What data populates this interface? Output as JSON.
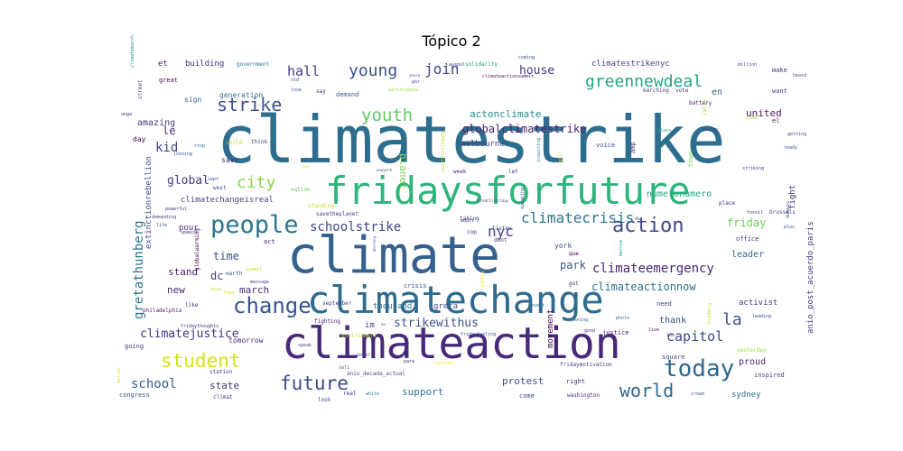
{
  "title": "Tópico 2",
  "words": [
    {
      "text": "climatestrike",
      "color": "#2d6e8e",
      "weight": 100
    },
    {
      "text": "climate",
      "color": "#34618d",
      "weight": 75
    },
    {
      "text": "climateaction",
      "color": "#482878",
      "weight": 68
    },
    {
      "text": "climatechange",
      "color": "#2f6b8e",
      "weight": 58
    },
    {
      "text": "fridaysforfuture",
      "color": "#2fb47c",
      "weight": 55
    },
    {
      "text": "people",
      "color": "#2b758e",
      "weight": 38
    },
    {
      "text": "today",
      "color": "#30688e",
      "weight": 36
    },
    {
      "text": "change",
      "color": "#3a548c",
      "weight": 33
    },
    {
      "text": "action",
      "color": "#3f4889",
      "weight": 30
    },
    {
      "text": "future",
      "color": "#3e4a89",
      "weight": 30
    },
    {
      "text": "student",
      "color": "#d8e219",
      "weight": 28
    },
    {
      "text": "world",
      "color": "#31678e",
      "weight": 27
    },
    {
      "text": "strike",
      "color": "#3c508b",
      "weight": 27
    },
    {
      "text": "youth",
      "color": "#5ec962",
      "weight": 26
    },
    {
      "text": "city",
      "color": "#8bd646",
      "weight": 25
    },
    {
      "text": "greennewdeal",
      "color": "#22a785",
      "weight": 24
    },
    {
      "text": "la",
      "color": "#3b518b",
      "weight": 24
    },
    {
      "text": "young",
      "color": "#3b528b",
      "weight": 24
    },
    {
      "text": "nyc",
      "color": "#433e85",
      "weight": 22
    },
    {
      "text": "join",
      "color": "#424186",
      "weight": 21
    },
    {
      "text": "climatecrisis",
      "color": "#2a778e",
      "weight": 21
    },
    {
      "text": "hall",
      "color": "#453882",
      "weight": 20
    },
    {
      "text": "capitol",
      "color": "#3e4989",
      "weight": 20
    },
    {
      "text": "school",
      "color": "#375a8c",
      "weight": 19
    },
    {
      "text": "climateemergency",
      "color": "#482677",
      "weight": 19
    },
    {
      "text": "schoolstrike",
      "color": "#404588",
      "weight": 18
    },
    {
      "text": "gretathunberg",
      "color": "#2c728e",
      "weight": 18
    },
    {
      "text": "kid",
      "color": "#414287",
      "weight": 18
    },
    {
      "text": "strikewithus",
      "color": "#3a538b",
      "weight": 17
    },
    {
      "text": "climatejustice",
      "color": "#46337f",
      "weight": 17
    },
    {
      "text": "global",
      "color": "#443a83",
      "weight": 17
    },
    {
      "text": "house",
      "color": "#453781",
      "weight": 17
    },
    {
      "text": "globalclimatestrike",
      "color": "#481f70",
      "weight": 16
    },
    {
      "text": "climateactionnow",
      "color": "#2d708e",
      "weight": 16
    },
    {
      "text": "friday",
      "color": "#6ccd5a",
      "weight": 16
    },
    {
      "text": "park",
      "color": "#38588c",
      "weight": 16
    },
    {
      "text": "time",
      "color": "#3c4f8a",
      "weight": 16
    },
    {
      "text": "dc",
      "color": "#424086",
      "weight": 16
    },
    {
      "text": "le",
      "color": "#46307e",
      "weight": 16
    },
    {
      "text": "actonclimate",
      "color": "#21918c",
      "weight": 15
    },
    {
      "text": "march",
      "color": "#472c7a",
      "weight": 15
    },
    {
      "text": "protest",
      "color": "#3e4c8a",
      "weight": 15
    },
    {
      "text": "support",
      "color": "#2a788e",
      "weight": 14
    },
    {
      "text": "state",
      "color": "#46327e",
      "weight": 14
    },
    {
      "text": "new",
      "color": "#472d7b",
      "weight": 14
    },
    {
      "text": "stand",
      "color": "#481b6d",
      "weight": 14
    },
    {
      "text": "planet",
      "color": "#7ad151",
      "weight": 14
    },
    {
      "text": "united",
      "color": "#481668",
      "weight": 14
    },
    {
      "text": "amazing",
      "color": "#453781",
      "weight": 13
    },
    {
      "text": "thank",
      "color": "#3d4d8a",
      "weight": 13
    },
    {
      "text": "proud",
      "color": "#482475",
      "weight": 13
    },
    {
      "text": "numeronumero",
      "color": "#22a884",
      "weight": 13
    },
    {
      "text": "leader",
      "color": "#31688e",
      "weight": 12
    },
    {
      "text": "en",
      "color": "#355f8d",
      "weight": 12
    },
    {
      "text": "climatechangeisreal",
      "color": "#404688",
      "weight": 11
    },
    {
      "text": "im",
      "color": "#443983",
      "weight": 11
    },
    {
      "text": "greta",
      "color": "#3b528b",
      "weight": 10
    },
    {
      "text": "movement",
      "color": "#440154",
      "weight": 10
    },
    {
      "text": "activist",
      "color": "#46317e",
      "weight": 10
    },
    {
      "text": "sydney",
      "color": "#2e6d8e",
      "weight": 10
    },
    {
      "text": "extinctionrebellion",
      "color": "#3f4889",
      "weight": 10
    },
    {
      "text": "anio_post_acuerdo_paris",
      "color": "#46337f",
      "weight": 10
    },
    {
      "text": "building",
      "color": "#472a7a",
      "weight": 10
    },
    {
      "text": "et",
      "color": "#481769",
      "weight": 10
    },
    {
      "text": "melbourne",
      "color": "#404588",
      "weight": 10
    },
    {
      "text": "pour",
      "color": "#472e7c",
      "weight": 10
    },
    {
      "text": "climatestrikenyc",
      "color": "#414287",
      "weight": 10
    },
    {
      "text": "fight",
      "color": "#472d7b",
      "weight": 10
    },
    {
      "text": "thousand",
      "color": "#2d708e",
      "weight": 10
    },
    {
      "text": "york",
      "color": "#3b518b",
      "weight": 9
    },
    {
      "text": "tomorrow",
      "color": "#482475",
      "weight": 9
    },
    {
      "text": "save",
      "color": "#472f7d",
      "weight": 9
    },
    {
      "text": "generation",
      "color": "#2c718e",
      "weight": 9
    },
    {
      "text": "sign",
      "color": "#31688e",
      "weight": 9
    },
    {
      "text": "day",
      "color": "#440154",
      "weight": 9
    },
    {
      "text": "congress",
      "color": "#3b528b",
      "weight": 8
    },
    {
      "text": "come",
      "color": "#414487",
      "weight": 8
    },
    {
      "text": "right",
      "color": "#46327e",
      "weight": 8
    },
    {
      "text": "square",
      "color": "#414487",
      "weight": 8
    },
    {
      "text": "inspired",
      "color": "#433e85",
      "weight": 8
    },
    {
      "text": "voice",
      "color": "#3e4a89",
      "weight": 8
    },
    {
      "text": "town",
      "color": "#7ad151",
      "weight": 8
    },
    {
      "text": "amp",
      "color": "#46337f",
      "weight": 8
    },
    {
      "text": "el",
      "color": "#481467",
      "weight": 8
    },
    {
      "text": "going",
      "color": "#453781",
      "weight": 8
    },
    {
      "text": "justice",
      "color": "#481c6e",
      "weight": 8
    },
    {
      "text": "office",
      "color": "#46317e",
      "weight": 8
    },
    {
      "text": "need",
      "color": "#3f4788",
      "weight": 8
    },
    {
      "text": "make",
      "color": "#472c7a",
      "weight": 8
    },
    {
      "text": "want",
      "color": "#423f85",
      "weight": 8
    },
    {
      "text": "great",
      "color": "#440154",
      "weight": 8
    },
    {
      "text": "act",
      "color": "#482576",
      "weight": 8
    },
    {
      "text": "crisis",
      "color": "#3e4989",
      "weight": 8
    },
    {
      "text": "demand",
      "color": "#38598c",
      "weight": 8
    },
    {
      "text": "say",
      "color": "#481b6d",
      "weight": 7
    },
    {
      "text": "child",
      "color": "#b5de2b",
      "weight": 7
    },
    {
      "text": "que",
      "color": "#440154",
      "weight": 7
    },
    {
      "text": "earth",
      "color": "#3b528b",
      "weight": 7
    },
    {
      "text": "savetheplanet",
      "color": "#453781",
      "weight": 7
    },
    {
      "text": "week",
      "color": "#481d6f",
      "weight": 7
    },
    {
      "text": "let",
      "color": "#46307e",
      "weight": 7
    },
    {
      "text": "taking",
      "color": "#3e4c8a",
      "weight": 7
    },
    {
      "text": "listen",
      "color": "#3b518b",
      "weight": 7
    },
    {
      "text": "dont",
      "color": "#472d7b",
      "weight": 7
    },
    {
      "text": "philadelphia",
      "color": "#481a6c",
      "weight": 7
    },
    {
      "text": "globalwarming",
      "color": "#440154",
      "weight": 7
    },
    {
      "text": "like",
      "color": "#472c7a",
      "weight": 7
    },
    {
      "text": "rally",
      "color": "#a0da39",
      "weight": 7
    },
    {
      "text": "street",
      "color": "#404588",
      "weight": 7
    },
    {
      "text": "climat",
      "color": "#404688",
      "weight": 7
    },
    {
      "text": "anio_decada_actual",
      "color": "#3b528b",
      "weight": 7
    },
    {
      "text": "paris",
      "color": "#fde725",
      "weight": 7
    },
    {
      "text": "got",
      "color": "#46307e",
      "weight": 7
    },
    {
      "text": "yesterday",
      "color": "#a2da37",
      "weight": 6
    },
    {
      "text": "washington",
      "color": "#482878",
      "weight": 6
    },
    {
      "text": "fridaymotivation",
      "color": "#433e85",
      "weight": 6
    },
    {
      "text": "september",
      "color": "#3e4989",
      "weight": 6
    },
    {
      "text": "fighting",
      "color": "#481467",
      "weight": 6
    },
    {
      "text": "environment",
      "color": "#b5de2b",
      "weight": 6
    },
    {
      "text": "station",
      "color": "#46337f",
      "weight": 6
    },
    {
      "text": "real",
      "color": "#472e7c",
      "weight": 6
    },
    {
      "text": "look",
      "color": "#3b528b",
      "weight": 6
    },
    {
      "text": "think",
      "color": "#3f4788",
      "weight": 6
    },
    {
      "text": "west",
      "color": "#3d4d8a",
      "weight": 6
    },
    {
      "text": "nation",
      "color": "#6ccd5a",
      "weight": 6
    },
    {
      "text": "standing",
      "color": "#c2df23",
      "weight": 6
    },
    {
      "text": "cop",
      "color": "#482173",
      "weight": 6
    },
    {
      "text": "brussels",
      "color": "#404588",
      "weight": 6
    },
    {
      "text": "place",
      "color": "#472c7a",
      "weight": 6
    },
    {
      "text": "vote",
      "color": "#472f7d",
      "weight": 6
    },
    {
      "text": "marching",
      "color": "#414487",
      "weight": 6
    },
    {
      "text": "battery",
      "color": "#481a6c",
      "weight": 6
    },
    {
      "text": "solidarity",
      "color": "#20a386",
      "weight": 6
    },
    {
      "text": "government",
      "color": "#2a788e",
      "weight": 6
    },
    {
      "text": "work",
      "color": "#ddd",
      "weight": 6
    },
    {
      "text": "hope",
      "color": "#d8e219",
      "weight": 6
    },
    {
      "text": "leading",
      "color": "#3e4989",
      "weight": 5
    },
    {
      "text": "happening",
      "color": "#2f6b8e",
      "weight": 5
    },
    {
      "text": "live",
      "color": "#440154",
      "weight": 5
    },
    {
      "text": "good",
      "color": "#472d7b",
      "weight": 5
    },
    {
      "text": "event",
      "color": "#2d708e",
      "weight": 5
    },
    {
      "text": "million",
      "color": "#3e4989",
      "weight": 5
    },
    {
      "text": "heard",
      "color": "#453882",
      "weight": 5
    },
    {
      "text": "getting",
      "color": "#404588",
      "weight": 5
    },
    {
      "text": "ready",
      "color": "#3b528b",
      "weight": 5
    },
    {
      "text": "video",
      "color": "#a8db34",
      "weight": 5
    },
    {
      "text": "striking",
      "color": "#424086",
      "weight": 5
    },
    {
      "text": "speaking",
      "color": "#3e4989",
      "weight": 5
    },
    {
      "text": "inspiring",
      "color": "#2d708e",
      "weight": 5
    },
    {
      "text": "girl",
      "color": "#fde725",
      "weight": 5
    },
    {
      "text": "adult",
      "color": "#482475",
      "weight": 5
    },
    {
      "text": "crowd",
      "color": "#3b528b",
      "weight": 5
    },
    {
      "text": "plaza",
      "color": "#35b779",
      "weight": 5
    },
    {
      "text": "boston",
      "color": "#3f4788",
      "weight": 5
    },
    {
      "text": "coming",
      "color": "#3e4a89",
      "weight": 4
    },
    {
      "text": "climateactionsummit",
      "color": "#481467",
      "weight": 4
    },
    {
      "text": "participate",
      "color": "#a0da39",
      "weight": 4
    },
    {
      "text": "youthforclimate",
      "color": "#b5de2b",
      "weight": 4
    },
    {
      "text": "old",
      "color": "#3e4a89",
      "weight": 4
    },
    {
      "text": "love",
      "color": "#3b528b",
      "weight": 4
    },
    {
      "text": "por",
      "color": "#453781",
      "weight": 4
    },
    {
      "text": "auspol",
      "color": "#404588",
      "weight": 4
    },
    {
      "text": "unga",
      "color": "#472c7a",
      "weight": 4
    },
    {
      "text": "climatemarch",
      "color": "#21918c",
      "weight": 4
    },
    {
      "text": "stop",
      "color": "#2a788e",
      "weight": 4
    },
    {
      "text": "joining",
      "color": "#3e4989",
      "weight": 4
    },
    {
      "text": "sept",
      "color": "#3f4788",
      "weight": 4
    },
    {
      "text": "powerful",
      "color": "#46327e",
      "weight": 4
    },
    {
      "text": "demanding",
      "color": "#433e85",
      "weight": 4
    },
    {
      "text": "life",
      "color": "#3b528b",
      "weight": 4
    },
    {
      "text": "speech",
      "color": "#472c7a",
      "weight": 4
    },
    {
      "text": "know",
      "color": "#b5de2b",
      "weight": 4
    },
    {
      "text": "summit",
      "color": "#c8e020",
      "weight": 4
    },
    {
      "text": "message",
      "color": "#3e4a89",
      "weight": 4
    },
    {
      "text": "fridaythoughts",
      "color": "#46327e",
      "weight": 4
    },
    {
      "text": "speak",
      "color": "#404588",
      "weight": 4
    },
    {
      "text": "better",
      "color": "#d8e219",
      "weight": 4
    },
    {
      "text": "power",
      "color": "#3e4989",
      "weight": 4
    },
    {
      "text": "tell",
      "color": "#3b528b",
      "weight": 4
    },
    {
      "text": "white",
      "color": "#2a788e",
      "weight": 4
    },
    {
      "text": "para",
      "color": "#472d7b",
      "weight": 4
    },
    {
      "text": "outside",
      "color": "#fde725",
      "weight": 4
    },
    {
      "text": "fridayfeeling",
      "color": "#3b528b",
      "weight": 5
    },
    {
      "text": "photo",
      "color": "#2d708e",
      "weight": 4
    },
    {
      "text": "thunberg",
      "color": "#b5de2b",
      "weight": 4
    },
    {
      "text": "los",
      "color": "#46327e",
      "weight": 4
    },
    {
      "text": "du",
      "color": "#3e4989",
      "weight": 4
    },
    {
      "text": "domain",
      "color": "#414487",
      "weight": 4
    },
    {
      "text": "plus",
      "color": "#3b528b",
      "weight": 4
    },
    {
      "text": "fossil",
      "color": "#472c7a",
      "weight": 4
    },
    {
      "text": "bernie",
      "color": "#21918c",
      "weight": 4
    },
    {
      "text": "newyork",
      "color": "#3e4a89",
      "weight": 3
    },
    {
      "text": "firedrillfriday",
      "color": "#433e85",
      "weight": 3
    },
    {
      "text": "way",
      "color": "#d8e219",
      "weight": 3
    },
    {
      "text": "youre",
      "color": "#404588",
      "weight": 3
    },
    {
      "text": "morning",
      "color": "#3b528b",
      "weight": 3
    },
    {
      "text": "se",
      "color": "#46327e",
      "weight": 3
    }
  ]
}
